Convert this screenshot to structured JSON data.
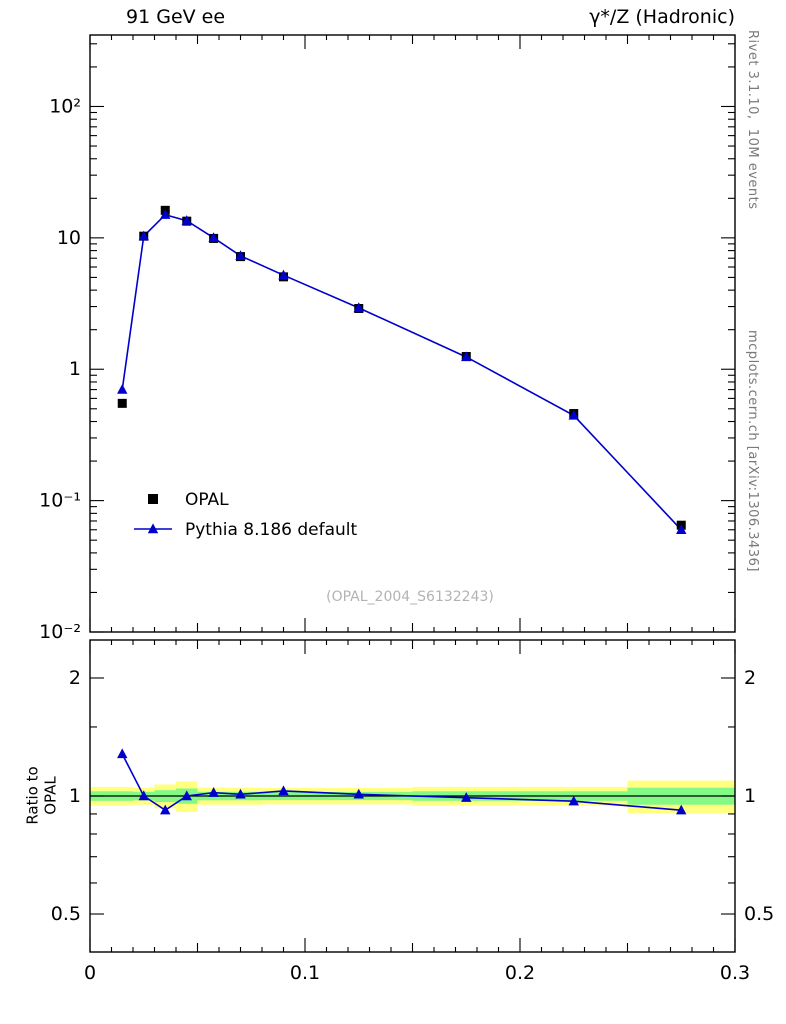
{
  "header": {
    "left_title": "91 GeV ee",
    "right_title": "γ*/Z (Hadronic)"
  },
  "side_notes": {
    "top": "Rivet 3.1.10,  10M events",
    "bottom": "mcplots.cern.ch [arXiv:1306.3436]"
  },
  "watermark": "(OPAL_2004_S6132243)",
  "ratio_ylabel": "Ratio to OPAL",
  "legend": [
    {
      "label": "OPAL",
      "marker": "square",
      "color": "#000000",
      "line": false
    },
    {
      "label": "Pythia 8.186 default",
      "marker": "triangle",
      "color": "#0000cc",
      "line": true
    }
  ],
  "colors": {
    "data": "#000000",
    "mc": "#0000cc",
    "band_yellow": "#ffff80",
    "band_green": "#85f985",
    "frame": "#000000",
    "watermark": "#b3b3b3"
  },
  "chart_data": [
    {
      "type": "line",
      "panel": "main",
      "title": "91 GeV ee — γ*/Z (Hadronic)",
      "xlabel": "",
      "ylabel": "",
      "xlim": [
        0,
        0.3
      ],
      "ylim": [
        0.01,
        350
      ],
      "ylog": true,
      "grid": false,
      "legend_position": "lower-left-inside",
      "xticks": [
        0,
        0.1,
        0.2,
        0.3
      ],
      "xtick_labels": [
        "0",
        "0.1",
        "0.2",
        "0.3"
      ],
      "x_minor_step": 0.01,
      "yticks": [
        100,
        10,
        1,
        0.1,
        0.01
      ],
      "ytick_labels": [
        "10²",
        "10",
        "1",
        "10⁻¹",
        "10⁻²"
      ],
      "x": [
        0.015,
        0.025,
        0.035,
        0.045,
        0.0575,
        0.07,
        0.09,
        0.125,
        0.175,
        0.225,
        0.275
      ],
      "series": [
        {
          "name": "OPAL",
          "marker": "square",
          "color": "#000000",
          "values": [
            0.55,
            10.3,
            16.2,
            13.4,
            9.9,
            7.2,
            5.05,
            2.9,
            1.25,
            0.46,
            0.065
          ]
        },
        {
          "name": "Pythia 8.186 default",
          "marker": "triangle",
          "color": "#0000cc",
          "values": [
            0.7,
            10.3,
            15.0,
            13.5,
            10.0,
            7.3,
            5.2,
            2.93,
            1.24,
            0.445,
            0.06
          ]
        }
      ]
    },
    {
      "type": "ratio",
      "panel": "ratio",
      "ylabel": "Ratio to OPAL",
      "xlim": [
        0,
        0.3
      ],
      "ylim": [
        0.4,
        2.5
      ],
      "ylog": true,
      "yticks": [
        0.5,
        1,
        2
      ],
      "ytick_labels": [
        "0.5",
        "1",
        "2"
      ],
      "y_minor_ticks": [
        0.6,
        0.7,
        0.8,
        0.9,
        1.5
      ],
      "reference_line": 1,
      "x": [
        0.015,
        0.025,
        0.035,
        0.045,
        0.0575,
        0.07,
        0.09,
        0.125,
        0.175,
        0.225,
        0.275
      ],
      "values": [
        1.28,
        1.0,
        0.92,
        1.0,
        1.02,
        1.01,
        1.03,
        1.01,
        0.99,
        0.97,
        0.92
      ],
      "bands": [
        {
          "x0": 0.0,
          "x1": 0.02,
          "yellow": [
            0.945,
            1.055
          ],
          "green": [
            0.972,
            1.028
          ]
        },
        {
          "x0": 0.02,
          "x1": 0.03,
          "yellow": [
            0.95,
            1.05
          ],
          "green": [
            0.975,
            1.025
          ]
        },
        {
          "x0": 0.03,
          "x1": 0.04,
          "yellow": [
            0.93,
            1.07
          ],
          "green": [
            0.965,
            1.035
          ]
        },
        {
          "x0": 0.04,
          "x1": 0.05,
          "yellow": [
            0.91,
            1.09
          ],
          "green": [
            0.955,
            1.045
          ]
        },
        {
          "x0": 0.05,
          "x1": 0.065,
          "yellow": [
            0.95,
            1.05
          ],
          "green": [
            0.975,
            1.025
          ]
        },
        {
          "x0": 0.065,
          "x1": 0.08,
          "yellow": [
            0.95,
            1.05
          ],
          "green": [
            0.975,
            1.025
          ]
        },
        {
          "x0": 0.08,
          "x1": 0.1,
          "yellow": [
            0.952,
            1.048
          ],
          "green": [
            0.976,
            1.024
          ]
        },
        {
          "x0": 0.1,
          "x1": 0.15,
          "yellow": [
            0.952,
            1.048
          ],
          "green": [
            0.976,
            1.024
          ]
        },
        {
          "x0": 0.15,
          "x1": 0.2,
          "yellow": [
            0.945,
            1.055
          ],
          "green": [
            0.972,
            1.028
          ]
        },
        {
          "x0": 0.2,
          "x1": 0.25,
          "yellow": [
            0.945,
            1.055
          ],
          "green": [
            0.972,
            1.028
          ]
        },
        {
          "x0": 0.25,
          "x1": 0.3,
          "yellow": [
            0.905,
            1.095
          ],
          "green": [
            0.95,
            1.05
          ]
        }
      ]
    }
  ]
}
